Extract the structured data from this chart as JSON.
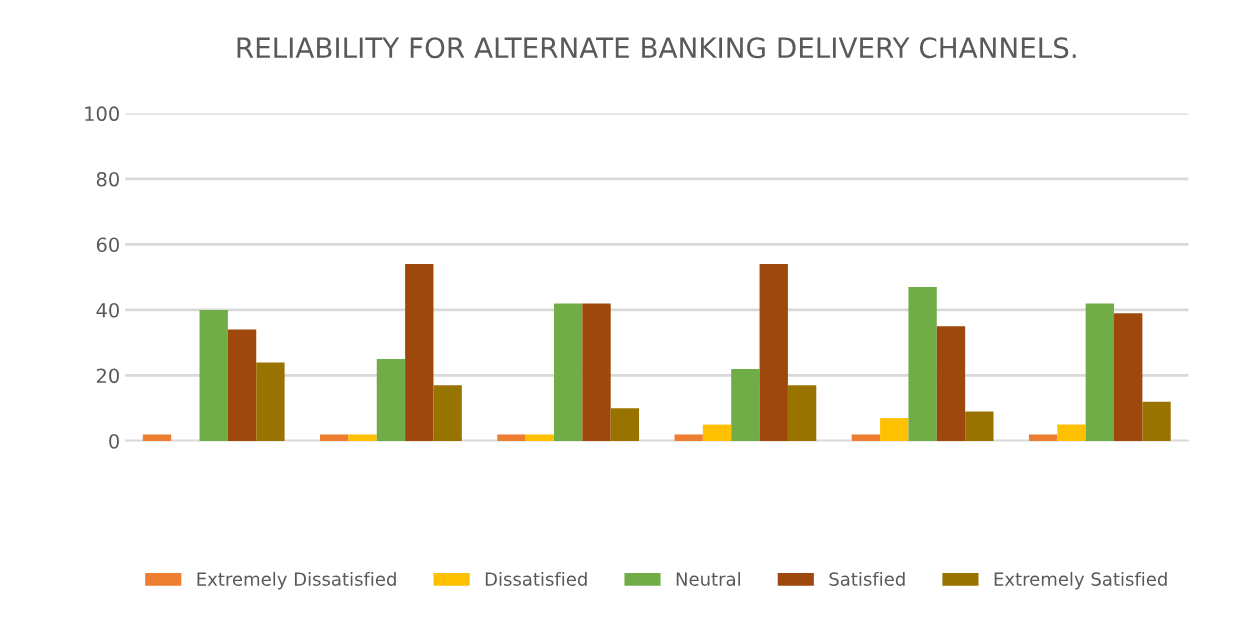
{
  "chart_data": {
    "type": "bar",
    "title": "RELIABILITY FOR ALTERNATE BANKING DELIVERY CHANNELS.",
    "categories": [
      null,
      null,
      null,
      null,
      null,
      null
    ],
    "series": [
      {
        "name": "Extremely Dissatisfied",
        "color": "#ed7d31",
        "values": [
          2,
          2,
          2,
          2,
          2,
          2
        ]
      },
      {
        "name": "Dissatisfied",
        "color": "#ffc000",
        "values": [
          0,
          2,
          2,
          5,
          7,
          5
        ]
      },
      {
        "name": "Neutral",
        "color": "#70ad47",
        "values": [
          40,
          25,
          42,
          22,
          47,
          42
        ]
      },
      {
        "name": "Satisfied",
        "color": "#9e480e",
        "values": [
          34,
          54,
          42,
          54,
          35,
          39
        ]
      },
      {
        "name": "Extremely Satisfied",
        "color": "#997300",
        "values": [
          24,
          17,
          10,
          17,
          9,
          12
        ]
      }
    ],
    "ylim": [
      0,
      100
    ],
    "yticks": [
      0,
      20,
      40,
      60,
      80,
      100
    ],
    "grid": "y",
    "legend": "bottom"
  }
}
